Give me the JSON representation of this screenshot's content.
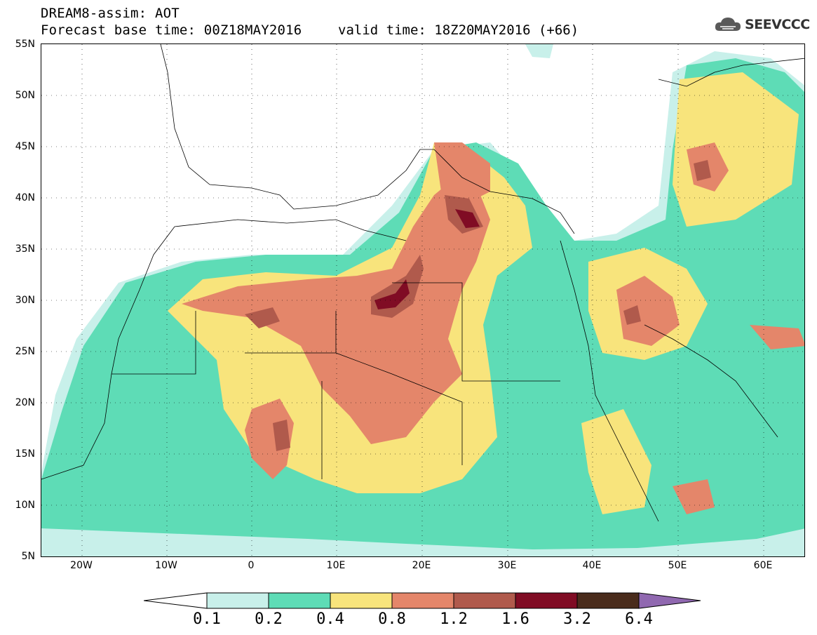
{
  "header": {
    "title_line1": "DREAM8-assim: AOT",
    "title_line2": "Forecast base time: 00Z18MAY2016",
    "valid_time": "valid time: 18Z20MAY2016 (+66)"
  },
  "logo": {
    "text": "SEEVCCC",
    "icon": "cloud-icon"
  },
  "map": {
    "lat_labels": [
      "55N",
      "50N",
      "45N",
      "40N",
      "35N",
      "30N",
      "25N",
      "20N",
      "15N",
      "10N",
      "5N"
    ],
    "lon_labels": [
      "20W",
      "10W",
      "0",
      "10E",
      "20E",
      "30E",
      "40E",
      "50E",
      "60E"
    ],
    "colors": {
      "c01": "#c8f0ea",
      "c02": "#5edcb6",
      "c04": "#f8e47c",
      "c08": "#e4866a",
      "c12": "#b05a4c",
      "c16": "#800c24",
      "c32": "#4a2c1c",
      "c64": "#9068b0",
      "border": "#000000"
    }
  },
  "colorbar": {
    "labels": [
      "0.1",
      "0.2",
      "0.4",
      "0.8",
      "1.2",
      "1.6",
      "3.2",
      "6.4"
    ]
  }
}
